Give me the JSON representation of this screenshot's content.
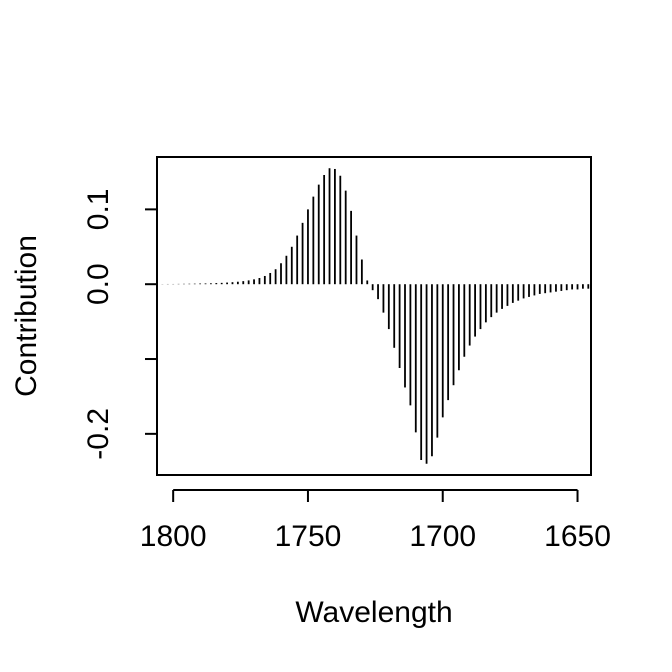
{
  "chart_data": {
    "type": "bar",
    "title": "",
    "xlabel": "Wavelength",
    "ylabel": "Contribution",
    "x_reversed": true,
    "xlim": [
      1806,
      1645
    ],
    "ylim": [
      -0.255,
      0.17
    ],
    "xticks": [
      {
        "value": 1800,
        "label": "1800"
      },
      {
        "value": 1750,
        "label": "1750"
      },
      {
        "value": 1700,
        "label": "1700"
      },
      {
        "value": 1650,
        "label": "1650"
      }
    ],
    "yticks": [
      {
        "value": 0.1,
        "label": "0.1"
      },
      {
        "value": 0.0,
        "label": "0.0"
      },
      {
        "value": -0.1,
        "label": ""
      },
      {
        "value": -0.2,
        "label": "-0.2"
      }
    ],
    "grid": false,
    "legend": "none",
    "color": "#000000",
    "series": [
      {
        "x": [
          1806,
          1804,
          1802,
          1800,
          1798,
          1796,
          1794,
          1792,
          1790,
          1788,
          1786,
          1784,
          1782,
          1780,
          1778,
          1776,
          1774,
          1772,
          1770,
          1768,
          1766,
          1764,
          1762,
          1760,
          1758,
          1756,
          1754,
          1752,
          1750,
          1748,
          1746,
          1744,
          1742,
          1740,
          1738,
          1736,
          1734,
          1732,
          1730,
          1728,
          1726,
          1724,
          1722,
          1720,
          1718,
          1716,
          1714,
          1712,
          1710,
          1708,
          1706,
          1704,
          1702,
          1700,
          1698,
          1696,
          1694,
          1692,
          1690,
          1688,
          1686,
          1684,
          1682,
          1680,
          1678,
          1676,
          1674,
          1672,
          1670,
          1668,
          1666,
          1664,
          1662,
          1660,
          1658,
          1656,
          1654,
          1652,
          1650,
          1648,
          1646
        ],
        "values": [
          0.0002,
          0.0002,
          0.0003,
          0.0003,
          0.0004,
          0.0005,
          0.0006,
          0.0007,
          0.0009,
          0.001,
          0.0012,
          0.0015,
          0.0018,
          0.0022,
          0.0027,
          0.0033,
          0.0041,
          0.0051,
          0.0065,
          0.0083,
          0.011,
          0.015,
          0.02,
          0.028,
          0.038,
          0.05,
          0.065,
          0.082,
          0.1,
          0.117,
          0.133,
          0.146,
          0.155,
          0.154,
          0.145,
          0.125,
          0.098,
          0.065,
          0.033,
          0.005,
          -0.008,
          -0.02,
          -0.038,
          -0.06,
          -0.085,
          -0.112,
          -0.138,
          -0.162,
          -0.198,
          -0.235,
          -0.24,
          -0.23,
          -0.205,
          -0.178,
          -0.155,
          -0.135,
          -0.115,
          -0.097,
          -0.082,
          -0.07,
          -0.06,
          -0.051,
          -0.044,
          -0.038,
          -0.033,
          -0.029,
          -0.025,
          -0.022,
          -0.019,
          -0.017,
          -0.015,
          -0.013,
          -0.012,
          -0.011,
          -0.01,
          -0.009,
          -0.008,
          -0.007,
          -0.007,
          -0.006,
          -0.006
        ]
      }
    ]
  }
}
